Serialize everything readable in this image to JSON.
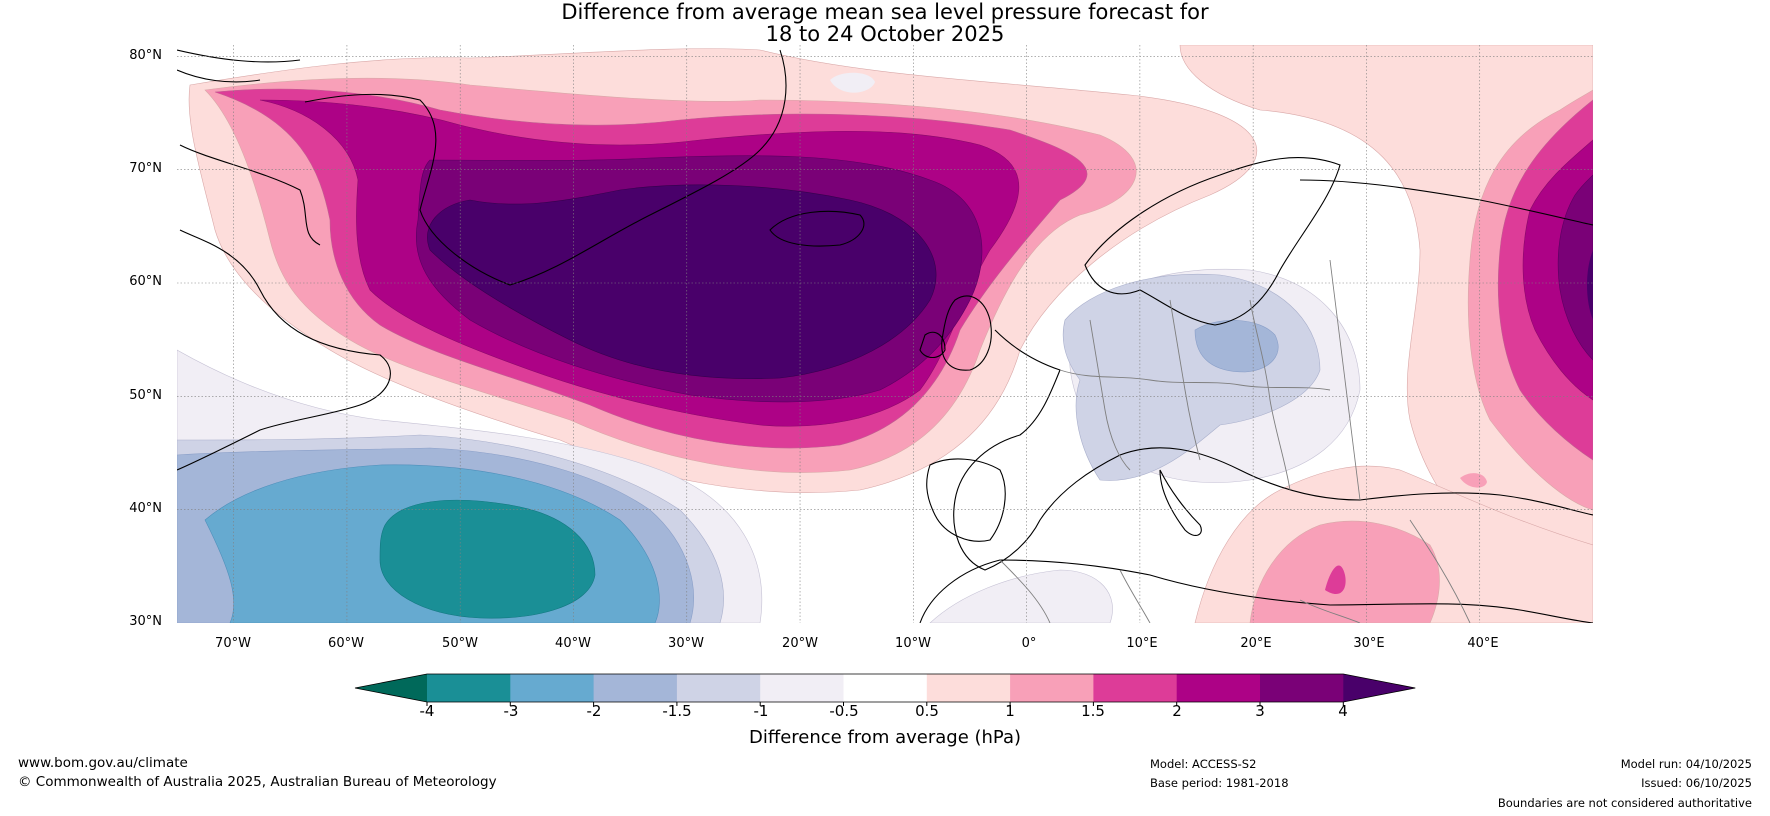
{
  "title": {
    "line1": "Difference from average mean sea level pressure forecast for",
    "line2": "18 to 24 October 2025"
  },
  "map": {
    "region": "North Atlantic and Europe",
    "extent": {
      "lon_min": -75,
      "lon_max": 50,
      "lat_min": 30,
      "lat_max": 81
    },
    "lat_labels": [
      "80°N",
      "70°N",
      "60°N",
      "50°N",
      "40°N",
      "30°N"
    ],
    "lon_labels": [
      "70°W",
      "60°W",
      "50°W",
      "40°W",
      "30°W",
      "20°W",
      "10°W",
      "0°",
      "10°E",
      "20°E",
      "30°E",
      "40°E"
    ],
    "anomalies": [
      {
        "name": "positive-anomaly-iceland",
        "center_lon": -26,
        "center_lat": 61,
        "peak_hPa": ">4"
      },
      {
        "name": "positive-anomaly-east",
        "center_lon": 49,
        "center_lat": 60,
        "peak_hPa": ">4"
      },
      {
        "name": "negative-anomaly-west-atlantic",
        "center_lon": -47,
        "center_lat": 36,
        "peak_hPa": "-3 to -4"
      },
      {
        "name": "negative-anomaly-central-europe",
        "center_lon": 20,
        "center_lat": 53,
        "peak_hPa": "-1.5 to -2"
      },
      {
        "name": "positive-anomaly-eastern-mediterranean",
        "center_lon": 27,
        "center_lat": 35,
        "peak_hPa": "1.5 to 2"
      }
    ]
  },
  "colorbar": {
    "title": "Difference from average (hPa)",
    "ticks": [
      "-4",
      "-3",
      "-2",
      "-1.5",
      "-1",
      "-0.5",
      "0.5",
      "1",
      "1.5",
      "2",
      "3",
      "4"
    ],
    "colors": {
      "lt_-4": "#00695a",
      "-4_-3": "#1a8f96",
      "-3_-2": "#66aad0",
      "-2_-1.5": "#a4b6d8",
      "-1.5_-1": "#cfd3e6",
      "-1_-0.5": "#f1eef5",
      "-0.5_0.5": "#ffffff",
      "0.5_1": "#fddddb",
      "1_1.5": "#f8a0b8",
      "1.5_2": "#dd3c98",
      "2_3": "#ad0286",
      "3_4": "#7a0177",
      "gt_4": "#49006a"
    }
  },
  "footer": {
    "website": "www.bom.gov.au/climate",
    "copyright": "© Commonwealth of Australia 2025, Australian Bureau of Meteorology",
    "model": "Model: ACCESS-S2",
    "base_period": "Base period: 1981-2018",
    "model_run": "Model run: 04/10/2025",
    "issued": "Issued: 06/10/2025",
    "disclaimer": "Boundaries are not considered authoritative"
  }
}
